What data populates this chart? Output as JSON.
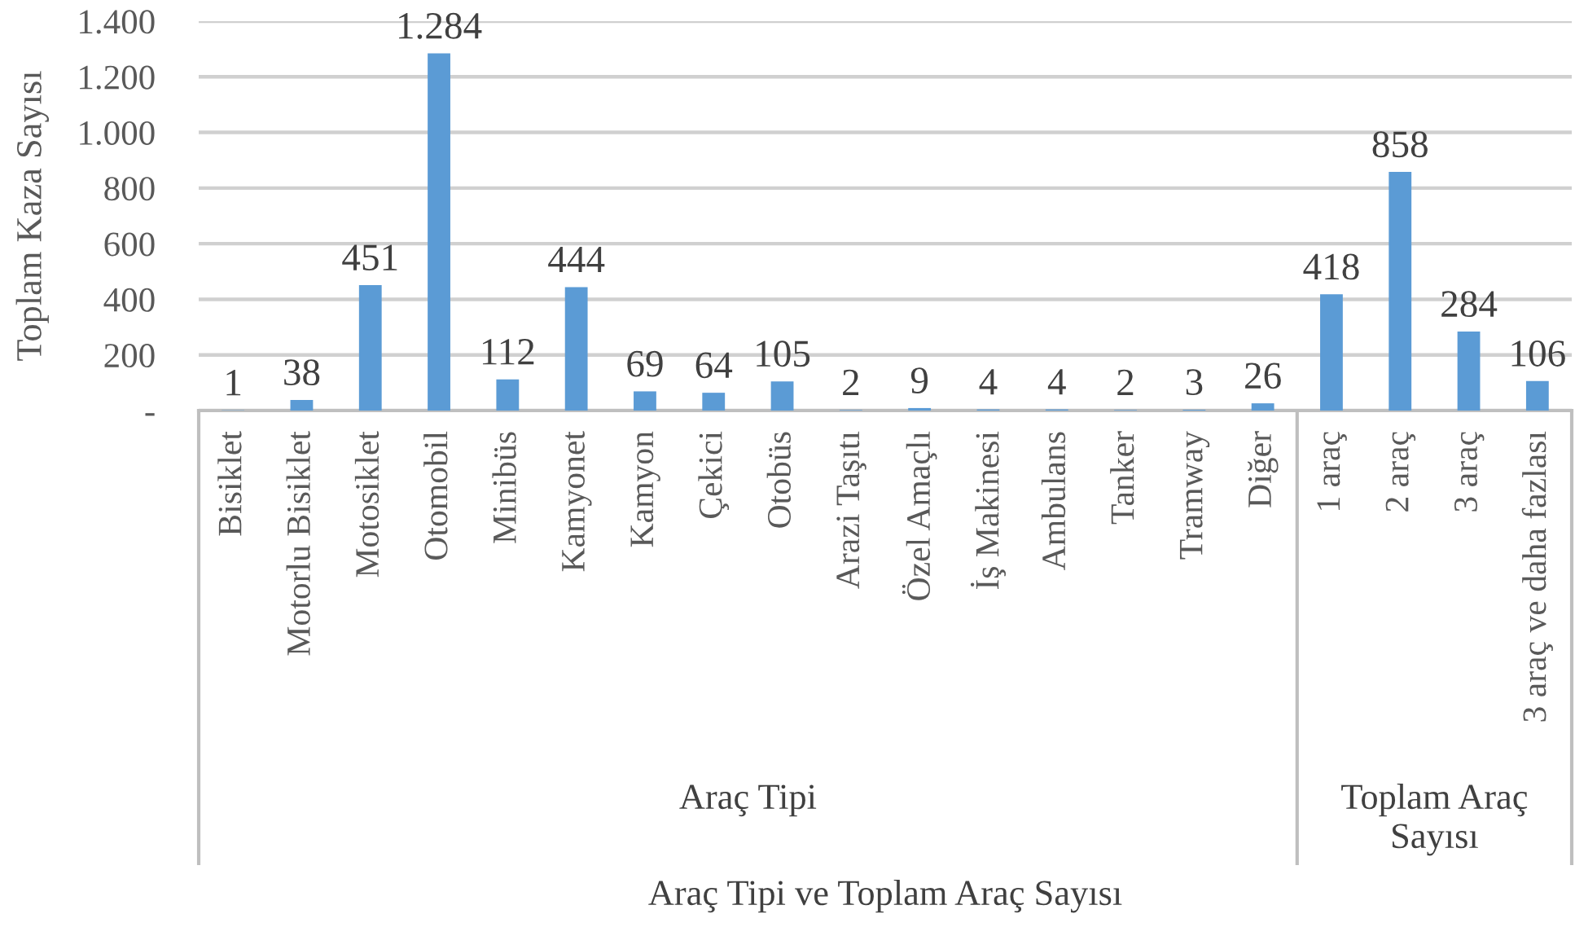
{
  "chart_data": {
    "type": "bar",
    "xlabel": "Araç Tipi ve Toplam Araç Sayısı",
    "ylabel": "Toplam Kaza Sayısı",
    "categories": [
      "Bisiklet",
      "Motorlu Bisiklet",
      "Motosiklet",
      "Otomobil",
      "Minibüs",
      "Kamyonet",
      "Kamyon",
      "Çekici",
      "Otobüs",
      "Arazi Taşıtı",
      "Özel Amaçlı",
      "İş Makinesi",
      "Ambulans",
      "Tanker",
      "Tramway",
      "Diğer",
      "1 araç",
      "2 araç",
      "3 araç",
      "3 araç ve daha fazlası"
    ],
    "values": [
      1,
      38,
      451,
      1284,
      112,
      444,
      69,
      64,
      105,
      2,
      9,
      4,
      4,
      2,
      3,
      26,
      418,
      858,
      284,
      106
    ],
    "value_labels": [
      "1",
      "38",
      "451",
      "1.284",
      "112",
      "444",
      "69",
      "64",
      "105",
      "2",
      "9",
      "4",
      "4",
      "2",
      "3",
      "26",
      "418",
      "858",
      "284",
      "106"
    ],
    "color": "#5b9bd5",
    "ylim": [
      0,
      1400
    ],
    "yticks": [
      {
        "value": 0,
        "label": "-"
      },
      200,
      400,
      600,
      800,
      {
        "value": 1000,
        "label": "1.000"
      },
      {
        "value": 1200,
        "label": "1.200"
      },
      {
        "value": 1400,
        "label": "1.400"
      }
    ],
    "grid": "y",
    "annotations": [
      "Araç Tipi",
      "Toplam Araç Sayısı"
    ]
  }
}
